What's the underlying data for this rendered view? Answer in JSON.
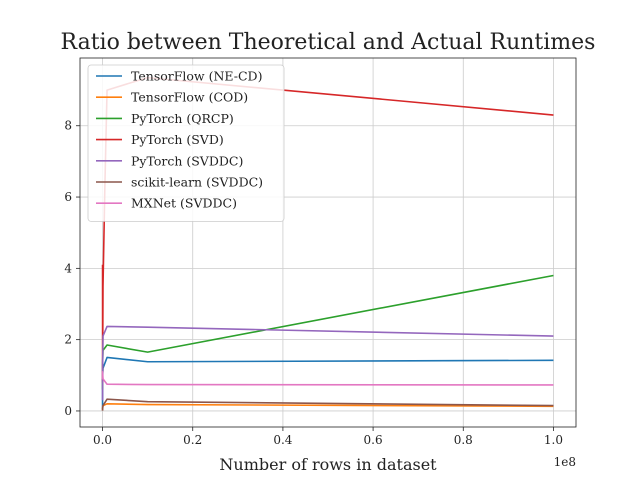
{
  "chart_data": {
    "type": "line",
    "title": "Ratio between Theoretical and Actual Runtimes",
    "xlabel": "Number of rows in dataset",
    "ylabel": "",
    "x_offset_label": "1e8",
    "xlim": [
      -5000000,
      105000000
    ],
    "ylim": [
      -0.45,
      9.9
    ],
    "xticks": [
      0,
      20000000,
      40000000,
      60000000,
      80000000,
      100000000
    ],
    "xtick_labels": [
      "0.0",
      "0.2",
      "0.4",
      "0.6",
      "0.8",
      "1.0"
    ],
    "yticks": [
      0,
      2,
      4,
      6,
      8
    ],
    "ytick_labels": [
      "0",
      "2",
      "4",
      "6",
      "8"
    ],
    "grid": true,
    "legend_position": "upper-left",
    "series": [
      {
        "name": "TensorFlow (NE-CD)",
        "color": "#1f77b4",
        "x": [
          1000,
          10000,
          100000,
          1000000,
          10000000,
          100000000
        ],
        "y": [
          0.05,
          0.9,
          1.2,
          1.5,
          1.38,
          1.42
        ]
      },
      {
        "name": "TensorFlow (COD)",
        "color": "#ff7f0e",
        "x": [
          1000,
          10000,
          100000,
          1000000,
          10000000,
          100000000
        ],
        "y": [
          0.02,
          0.1,
          0.15,
          0.2,
          0.18,
          0.13
        ]
      },
      {
        "name": "PyTorch (QRCP)",
        "color": "#2ca02c",
        "x": [
          1000,
          10000,
          100000,
          1000000,
          10000000,
          100000000
        ],
        "y": [
          0.6,
          1.3,
          1.7,
          1.85,
          1.65,
          3.8
        ]
      },
      {
        "name": "PyTorch (SVD)",
        "color": "#d62728",
        "x": [
          1000,
          10000,
          100000,
          500000,
          1000000,
          10000000,
          100000000
        ],
        "y": [
          4.1,
          0.8,
          3.5,
          6.2,
          9.0,
          9.35,
          8.3
        ]
      },
      {
        "name": "PyTorch (SVDDC)",
        "color": "#9467bd",
        "x": [
          1000,
          10000,
          100000,
          1000000,
          10000000,
          100000000
        ],
        "y": [
          0.3,
          1.2,
          2.1,
          2.37,
          2.35,
          2.1
        ]
      },
      {
        "name": "scikit-learn (SVDDC)",
        "color": "#8c564b",
        "x": [
          1000,
          10000,
          100000,
          1000000,
          10000000,
          100000000
        ],
        "y": [
          0.01,
          0.05,
          0.15,
          0.33,
          0.26,
          0.15
        ]
      },
      {
        "name": "MXNet (SVDDC)",
        "color": "#e377c2",
        "x": [
          1000,
          10000,
          100000,
          1000000,
          10000000,
          100000000
        ],
        "y": [
          0.9,
          1.1,
          0.9,
          0.75,
          0.74,
          0.73
        ]
      }
    ]
  }
}
